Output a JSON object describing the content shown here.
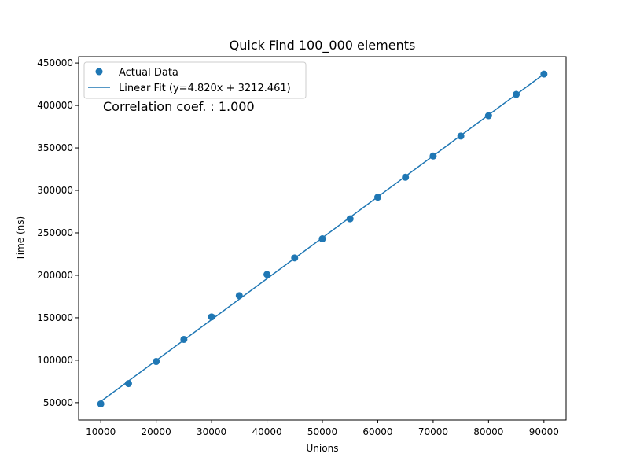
{
  "chart_data": {
    "type": "scatter",
    "title": "Quick Find 100_000 elements",
    "xlabel": "Unions",
    "ylabel": "Time (ns)",
    "xlim": [
      6000,
      94000
    ],
    "ylim": [
      29500,
      457500
    ],
    "x_ticks": [
      10000,
      20000,
      30000,
      40000,
      50000,
      60000,
      70000,
      80000,
      90000
    ],
    "y_ticks": [
      50000,
      100000,
      150000,
      200000,
      250000,
      300000,
      350000,
      400000,
      450000
    ],
    "grid": false,
    "legend_position": "top-left",
    "annotation": "Correlation coef. : 1.000",
    "series": [
      {
        "name": "Actual Data",
        "kind": "scatter",
        "color": "#1f77b4",
        "x": [
          10000,
          15000,
          20000,
          25000,
          30000,
          35000,
          40000,
          45000,
          50000,
          55000,
          60000,
          65000,
          70000,
          75000,
          80000,
          85000,
          90000
        ],
        "y": [
          48500,
          72500,
          98500,
          124500,
          151000,
          176000,
          201000,
          220500,
          243000,
          266500,
          292000,
          315500,
          340500,
          364000,
          388000,
          413000,
          437000
        ]
      },
      {
        "name": "Linear Fit (y=4.820x + 3212.461)",
        "kind": "line",
        "color": "#1f77b4",
        "slope": 4.82,
        "intercept": 3212.461,
        "x": [
          10000,
          90000
        ]
      }
    ]
  }
}
